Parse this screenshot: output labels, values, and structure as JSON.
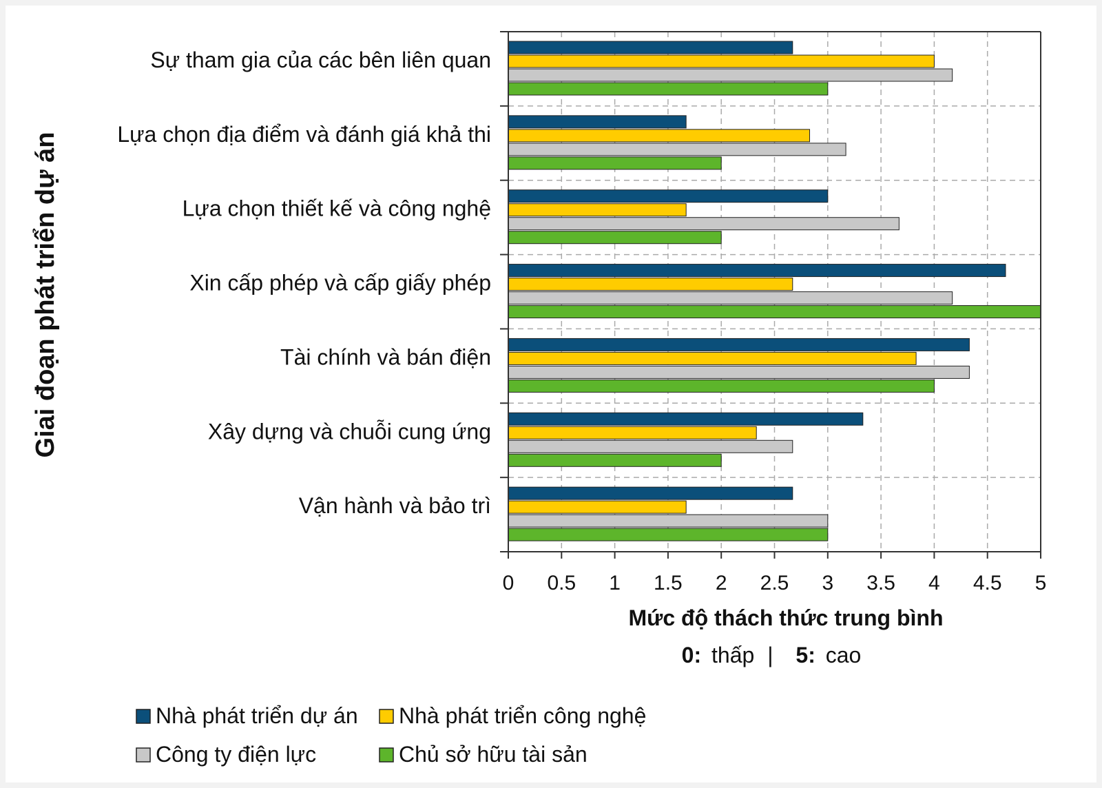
{
  "chart_data": {
    "type": "bar",
    "orientation": "horizontal",
    "ylabel": "Giai đoạn phát triển dự án",
    "xlabel": "Mức độ thách thức trung bình",
    "xlabel_note": {
      "low_key": "0:",
      "low_text": "thấp",
      "separator": "|",
      "high_key": "5:",
      "high_text": "cao"
    },
    "categories": [
      "Sự tham gia của các bên liên quan",
      "Lựa chọn địa điểm và đánh giá khả thi",
      "Lựa chọn thiết kế và công nghệ",
      "Xin cấp phép và cấp giấy phép",
      "Tài chính và bán điện",
      "Xây dựng và chuỗi cung ứng",
      "Vận hành và bảo trì"
    ],
    "series": [
      {
        "name": "Nhà phát triển dự án",
        "color": "#0b4f7a",
        "values": [
          2.67,
          1.67,
          3.0,
          4.67,
          4.33,
          3.33,
          2.67
        ]
      },
      {
        "name": "Nhà phát triển công nghệ",
        "color": "#ffcc00",
        "values": [
          4.0,
          2.83,
          1.67,
          2.67,
          3.83,
          2.33,
          1.67
        ]
      },
      {
        "name": "Công ty điện lực",
        "color": "#c8c8c8",
        "values": [
          4.17,
          3.17,
          3.67,
          4.17,
          4.33,
          2.67,
          3.0
        ]
      },
      {
        "name": "Chủ sở hữu tài sản",
        "color": "#5db52b",
        "values": [
          3.0,
          2.0,
          2.0,
          5.0,
          4.0,
          2.0,
          3.0
        ]
      }
    ],
    "xlim": [
      0,
      5
    ],
    "xticks": [
      "0",
      "0.5",
      "1",
      "1.5",
      "2",
      "2.5",
      "3",
      "3.5",
      "4",
      "4.5",
      "5"
    ],
    "grid": true,
    "legend_position": "bottom-left"
  }
}
